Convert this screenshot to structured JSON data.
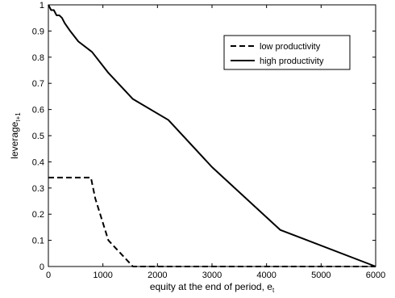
{
  "chart_data": {
    "type": "line",
    "title": "",
    "xlabel": "equity at the end of period, e",
    "xlabel_sub": "t",
    "ylabel": "leverage",
    "ylabel_sub": "t+1",
    "xlim": [
      0,
      6000
    ],
    "ylim": [
      0,
      1
    ],
    "xticks": [
      0,
      1000,
      2000,
      3000,
      4000,
      5000,
      6000
    ],
    "yticks": [
      0,
      0.1,
      0.2,
      0.3,
      0.4,
      0.5,
      0.6,
      0.7,
      0.8,
      0.9,
      1
    ],
    "grid": false,
    "legend_position": "top-right",
    "series": [
      {
        "name": "low productivity",
        "style": "dashed",
        "color": "#000000",
        "x": [
          0,
          780,
          860,
          1100,
          1550,
          6000
        ],
        "y": [
          0.34,
          0.34,
          0.26,
          0.1,
          0.0,
          0.0
        ]
      },
      {
        "name": "high productivity",
        "style": "solid",
        "color": "#000000",
        "x": [
          0,
          50,
          100,
          150,
          200,
          250,
          300,
          400,
          550,
          800,
          1100,
          1550,
          2200,
          3000,
          4250,
          6000
        ],
        "y": [
          1.0,
          0.98,
          0.98,
          0.96,
          0.96,
          0.95,
          0.93,
          0.9,
          0.86,
          0.82,
          0.74,
          0.64,
          0.56,
          0.38,
          0.14,
          0.0
        ]
      }
    ]
  }
}
